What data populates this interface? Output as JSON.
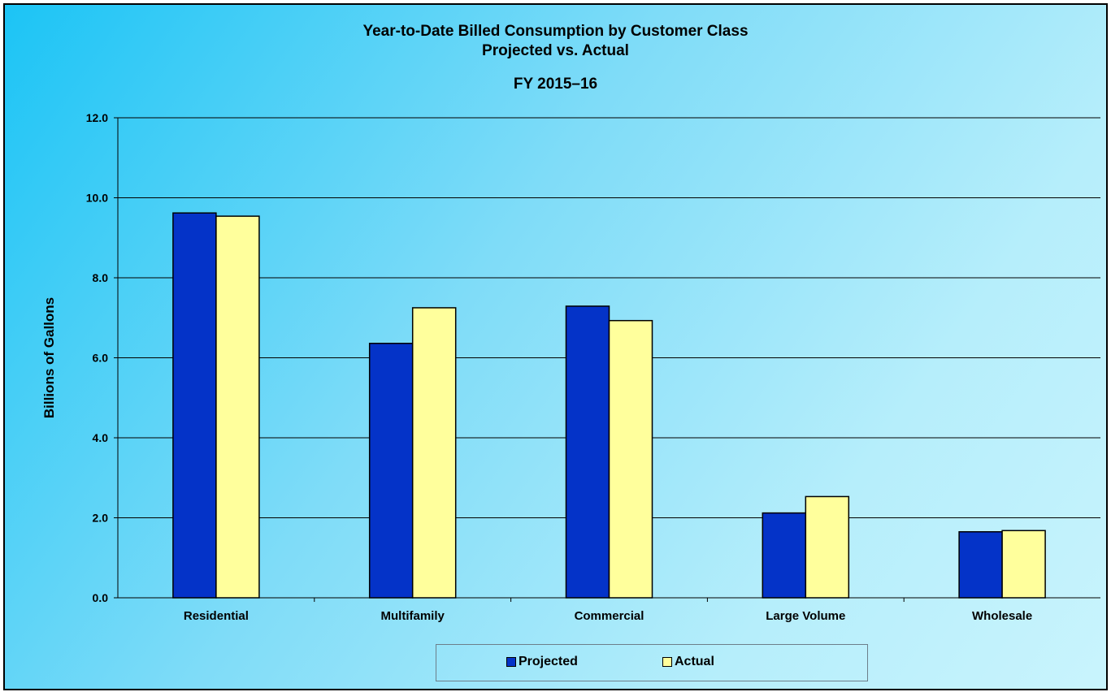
{
  "chart_data": {
    "type": "bar",
    "title": "Year-to-Date Billed Consumption by Customer Class",
    "subtitle": "Projected vs. Actual",
    "subtitle2": "FY 2015–16",
    "xlabel": "",
    "ylabel": "Billions of Gallons",
    "ylim": [
      0,
      12
    ],
    "yticks": [
      "0.0",
      "2.0",
      "4.0",
      "6.0",
      "8.0",
      "10.0",
      "12.0"
    ],
    "grid": true,
    "legend_position": "bottom",
    "categories": [
      "Residential",
      "Multifamily",
      "Commercial",
      "Large Volume",
      "Wholesale"
    ],
    "series": [
      {
        "name": "Projected",
        "color": "#0433c8",
        "values": [
          9.62,
          6.36,
          7.29,
          2.12,
          1.65
        ]
      },
      {
        "name": "Actual",
        "color": "#ffff9c",
        "values": [
          9.54,
          7.25,
          6.93,
          2.53,
          1.68
        ]
      }
    ]
  }
}
